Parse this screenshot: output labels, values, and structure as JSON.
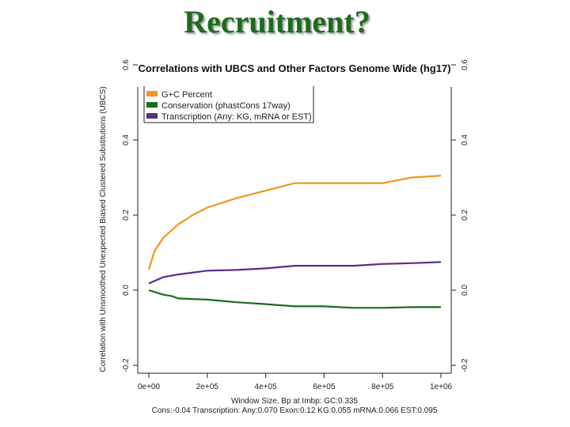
{
  "slide_title": "Recruitment?",
  "chart_data": {
    "type": "line",
    "title": "Correlations with UBCS and Other Factors Genome Wide (hg17)",
    "xlabel": "Window Size, Bp at Imbp: GC:0.335",
    "ylabel": "Correlation with Unsmoothed Unexpected Biased Clustered Substitutions (UBCS)",
    "footnote": "Cons:-0.04     Transcription: Any:0.070  Exon:0.12  KG:0.055  mRNA:0.066  EST:0.095",
    "xlim": [
      0,
      1000000
    ],
    "ylim": [
      -0.2,
      0.6
    ],
    "x_ticks": [
      0,
      200000,
      400000,
      600000,
      800000,
      1000000
    ],
    "x_tick_labels": [
      "0e+00",
      "2e+05",
      "4e+05",
      "6e+05",
      "8e+05",
      "1e+06"
    ],
    "y_ticks": [
      -0.2,
      0.0,
      0.2,
      0.4,
      0.6
    ],
    "y_tick_labels": [
      "-0.2",
      "0.0",
      "0.2",
      "0.4",
      "0.6"
    ],
    "legend_position": "top-left",
    "grid": false,
    "series": [
      {
        "name": "G+C Percent",
        "color": "#f0961e",
        "x": [
          0,
          20000,
          50000,
          100000,
          150000,
          200000,
          300000,
          400000,
          500000,
          600000,
          700000,
          800000,
          900000,
          1000000
        ],
        "y": [
          0.055,
          0.105,
          0.14,
          0.175,
          0.2,
          0.22,
          0.245,
          0.265,
          0.285,
          0.285,
          0.285,
          0.285,
          0.3,
          0.305
        ]
      },
      {
        "name": "Conservation (phastCons 17way)",
        "color": "#1a6b1a",
        "x": [
          0,
          50000,
          80000,
          100000,
          200000,
          300000,
          400000,
          500000,
          600000,
          700000,
          800000,
          900000,
          1000000
        ],
        "y": [
          0.0,
          -0.012,
          -0.016,
          -0.022,
          -0.025,
          -0.032,
          -0.037,
          -0.043,
          -0.043,
          -0.047,
          -0.047,
          -0.045,
          -0.045
        ]
      },
      {
        "name": "Transcription (Any: KG, mRNA or EST)",
        "color": "#5a2d82",
        "x": [
          0,
          50000,
          100000,
          200000,
          300000,
          400000,
          500000,
          600000,
          700000,
          800000,
          900000,
          1000000
        ],
        "y": [
          0.018,
          0.035,
          0.042,
          0.052,
          0.054,
          0.058,
          0.065,
          0.065,
          0.065,
          0.07,
          0.072,
          0.075
        ]
      }
    ]
  }
}
